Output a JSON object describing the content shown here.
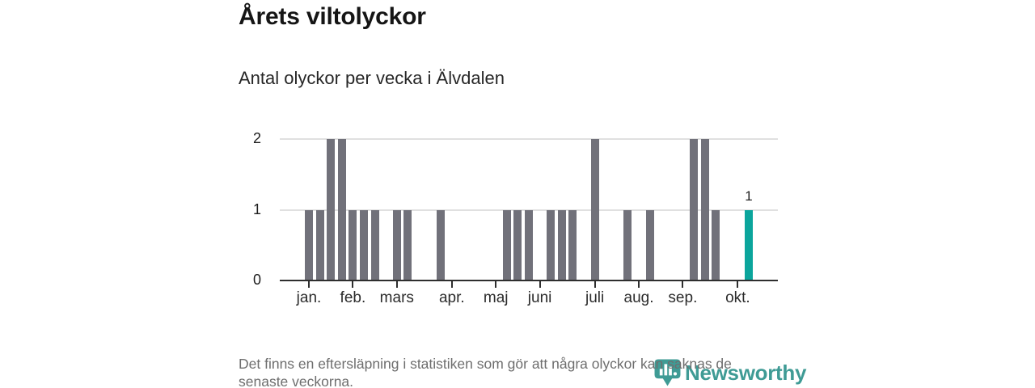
{
  "header": {
    "title": "Årets viltolyckor",
    "subtitle": "Antal olyckor per vecka i Älvdalen"
  },
  "chart_data": {
    "type": "bar",
    "title": "Årets viltolyckor",
    "subtitle": "Antal olyckor per vecka i Älvdalen",
    "x_unit": "vecka",
    "week_start": 1,
    "values": [
      1,
      1,
      2,
      2,
      1,
      1,
      1,
      0,
      1,
      1,
      0,
      0,
      1,
      0,
      0,
      0,
      0,
      0,
      1,
      1,
      1,
      0,
      1,
      1,
      1,
      0,
      2,
      0,
      0,
      1,
      0,
      1,
      0,
      0,
      0,
      2,
      2,
      1,
      0,
      0,
      1
    ],
    "highlight_week": 41,
    "highlight_value_label": "1",
    "y_ticks": [
      0,
      1,
      2
    ],
    "ylim": [
      0,
      2.2
    ],
    "grid": true,
    "legend": "none",
    "month_ticks": [
      {
        "label": "jan.",
        "week": 1
      },
      {
        "label": "feb.",
        "week": 5
      },
      {
        "label": "mars",
        "week": 9
      },
      {
        "label": "apr.",
        "week": 14
      },
      {
        "label": "maj",
        "week": 18
      },
      {
        "label": "juni",
        "week": 22
      },
      {
        "label": "juli",
        "week": 27
      },
      {
        "label": "aug.",
        "week": 31
      },
      {
        "label": "sep.",
        "week": 35
      },
      {
        "label": "okt.",
        "week": 40
      }
    ],
    "colors": {
      "bar": "#71717a",
      "highlight": "#0ba59c",
      "grid": "#e0e0e0",
      "axis": "#2e2e2e"
    }
  },
  "footer": {
    "note_lines": [
      "Det finns en eftersläpning i statistiken som gör att några olyckor kan saknas de",
      "senaste veckorna."
    ],
    "brand": "Newsworthy"
  }
}
